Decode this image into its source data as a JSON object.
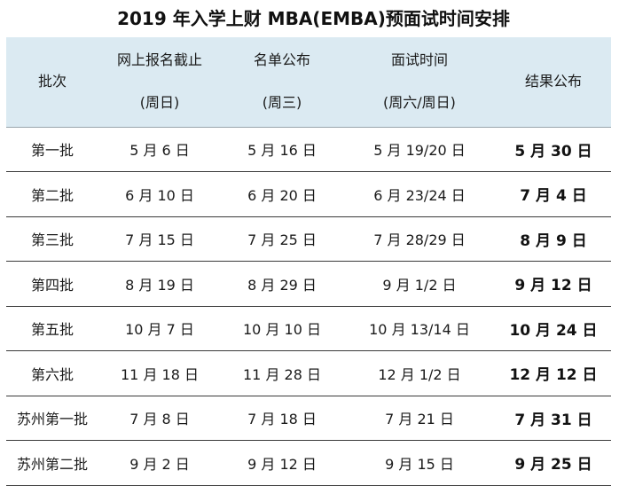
{
  "title": "2019 年入学上财 MBA(EMBA)预面试时间安排",
  "header": {
    "batch": "批次",
    "reg_deadline": "网上报名截止",
    "reg_deadline_sub": "(周日)",
    "list_publish": "名单公布",
    "list_publish_sub": "(周三)",
    "interview_time": "面试时间",
    "interview_time_sub": "(周六/周日)",
    "result_publish": "结果公布"
  },
  "rows": [
    {
      "batch": "第一批",
      "reg": "5 月 6 日",
      "list": "5 月 16 日",
      "interview": "5 月 19/20 日",
      "result": "5 月 30 日"
    },
    {
      "batch": "第二批",
      "reg": "6 月 10 日",
      "list": "6 月 20 日",
      "interview": "6 月 23/24 日",
      "result": "7 月 4 日"
    },
    {
      "batch": "第三批",
      "reg": "7 月 15 日",
      "list": "7 月 25 日",
      "interview": "7 月 28/29 日",
      "result": "8 月 9 日"
    },
    {
      "batch": "第四批",
      "reg": "8 月 19 日",
      "list": "8 月 29 日",
      "interview": "9 月 1/2 日",
      "result": "9 月 12 日"
    },
    {
      "batch": "第五批",
      "reg": "10 月 7 日",
      "list": "10 月 10 日",
      "interview": "10 月 13/14 日",
      "result": "10 月 24 日"
    },
    {
      "batch": "第六批",
      "reg": "11 月 18 日",
      "list": "11 月 28 日",
      "interview": "12 月 1/2 日",
      "result": "12 月 12 日"
    },
    {
      "batch": "苏州第一批",
      "reg": "7 月 8 日",
      "list": "7 月 18 日",
      "interview": "7 月 21 日",
      "result": "7 月 31 日"
    },
    {
      "batch": "苏州第二批",
      "reg": "9 月 2 日",
      "list": "9 月 12 日",
      "interview": "9 月 15 日",
      "result": "9 月 25 日"
    }
  ],
  "colors": {
    "header_bg": "#dbeaf2",
    "row_divider": "#3a3a3a"
  }
}
